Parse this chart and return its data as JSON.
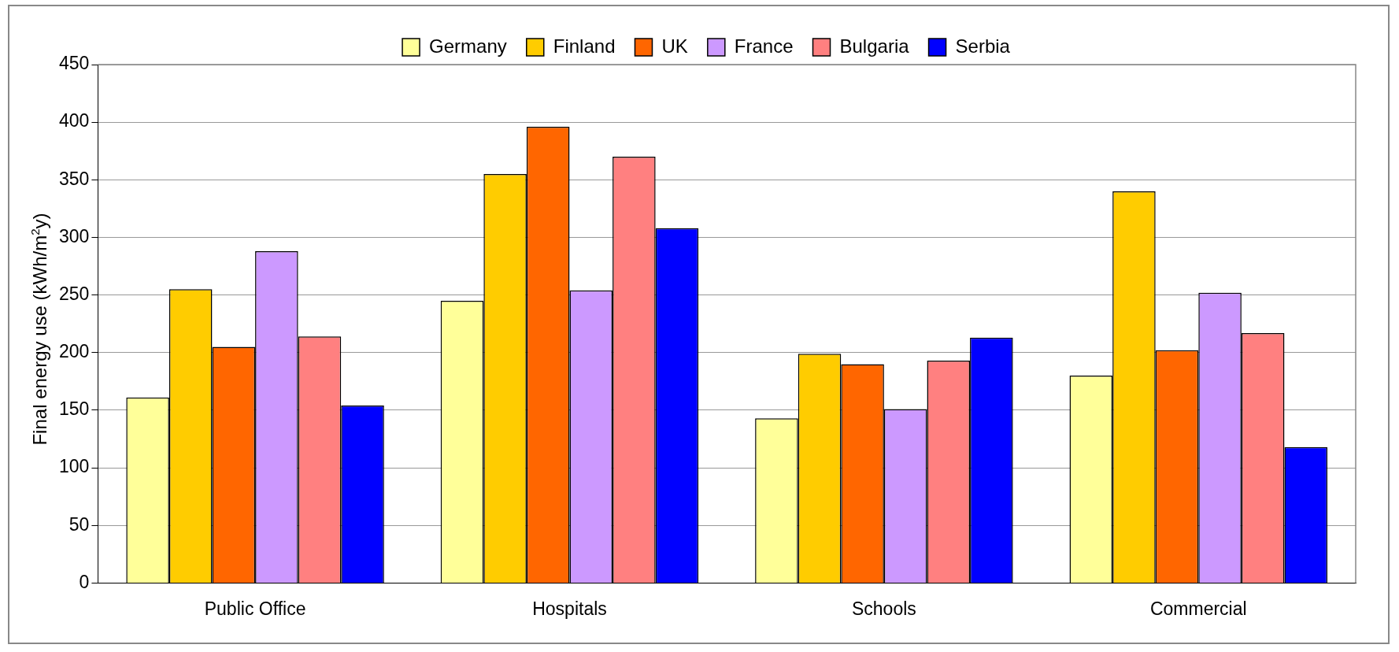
{
  "chart_data": {
    "type": "bar",
    "ylabel": "Final energy use (kWh/m$^{2}$y)",
    "categories": [
      "Public Office",
      "Hospitals",
      "Schools",
      "Commercial"
    ],
    "series": [
      {
        "name": "Germany",
        "color": "#ffff99",
        "values": [
          161,
          245,
          143,
          180
        ]
      },
      {
        "name": "Finland",
        "color": "#ffcc00",
        "values": [
          255,
          355,
          199,
          340
        ]
      },
      {
        "name": "UK",
        "color": "#ff6600",
        "values": [
          205,
          396,
          190,
          202
        ]
      },
      {
        "name": "France",
        "color": "#cc99ff",
        "values": [
          288,
          254,
          151,
          252
        ]
      },
      {
        "name": "Bulgaria",
        "color": "#ff8080",
        "values": [
          214,
          370,
          193,
          217
        ]
      },
      {
        "name": "Serbia",
        "color": "#0000ff",
        "values": [
          154,
          308,
          213,
          118
        ]
      }
    ],
    "ylim": [
      0,
      450
    ],
    "yticks": [
      0,
      50,
      100,
      150,
      200,
      250,
      300,
      350,
      400,
      450
    ],
    "grid": "y",
    "legend": "top"
  }
}
